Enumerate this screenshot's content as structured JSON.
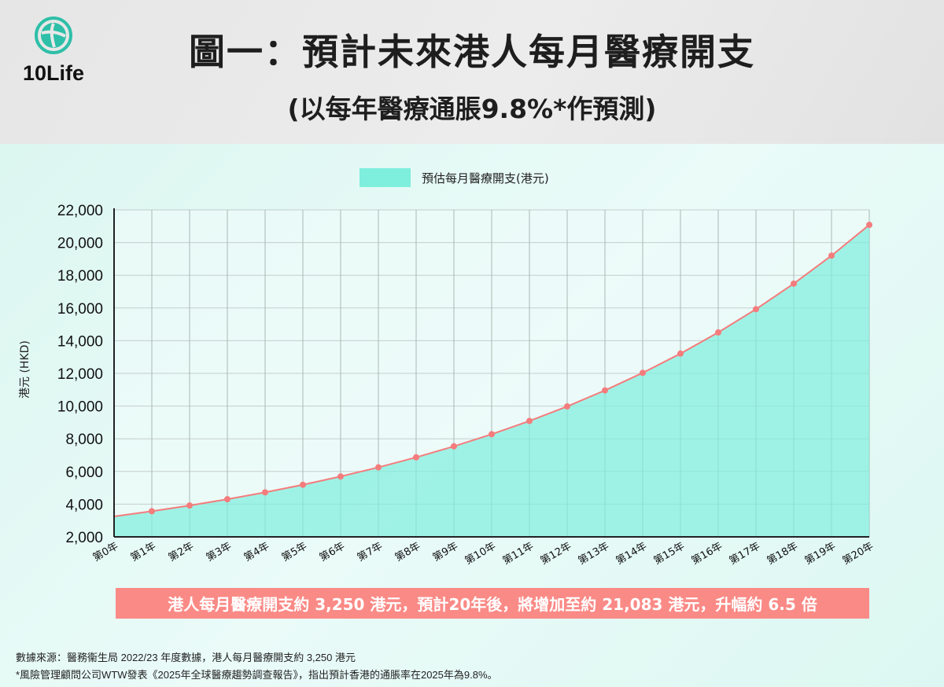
{
  "header": {
    "logo_text": "10Life",
    "title": "圖一：預計未來港人每月醫療開支",
    "subtitle": "(以每年醫療通脹9.8%*作預測)"
  },
  "chart_data": {
    "type": "area",
    "legend": "預估每月醫療開支(港元)",
    "legend_position": "top-center",
    "ylabel": "港元 (HKD)",
    "ylim": [
      2000,
      22000
    ],
    "yticks": [
      "2,000",
      "4,000",
      "6,000",
      "8,000",
      "10,000",
      "12,000",
      "14,000",
      "16,000",
      "18,000",
      "20,000",
      "22,000"
    ],
    "ytick_values": [
      2000,
      4000,
      6000,
      8000,
      10000,
      12000,
      14000,
      16000,
      18000,
      20000,
      22000
    ],
    "categories": [
      "第0年",
      "第1年",
      "第2年",
      "第3年",
      "第4年",
      "第5年",
      "第6年",
      "第7年",
      "第8年",
      "第9年",
      "第10年",
      "第11年",
      "第12年",
      "第13年",
      "第14年",
      "第15年",
      "第16年",
      "第17年",
      "第18年",
      "第19年",
      "第20年"
    ],
    "values": [
      3250,
      3569,
      3918,
      4302,
      4724,
      5187,
      5695,
      6253,
      6866,
      7539,
      8278,
      9089,
      9980,
      10958,
      12032,
      13211,
      14505,
      15927,
      17488,
      19201,
      21083
    ],
    "grid": true,
    "colors": {
      "fill": "#7eeedd",
      "line": "#f47c7c",
      "marker": "#f47c7c"
    }
  },
  "banner": "港人每月醫療開支約 3,250 港元，預計20年後，將增加至約 21,083 港元，升幅約 6.5 倍",
  "notes": [
    "數據來源：醫務衞生局 2022/23 年度數據，港人每月醫療開支約 3,250 港元",
    "*風險管理顧問公司WTW發表《2025年全球醫療趨勢調查報告》，指出預計香港的通脹率在2025年為9.8%。"
  ]
}
